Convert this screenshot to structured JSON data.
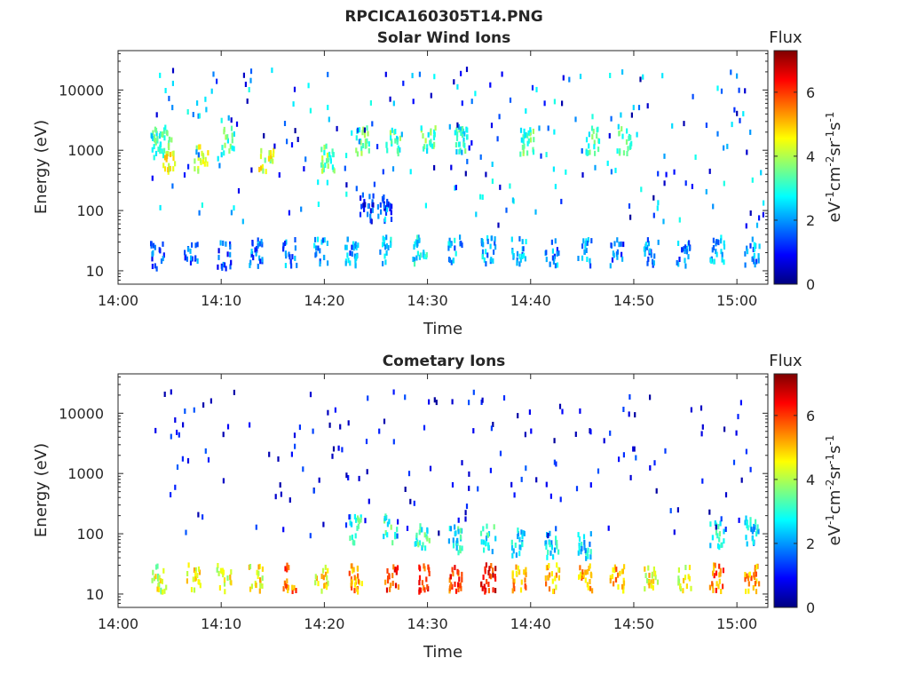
{
  "figure": {
    "suptitle": "RPCICA160305T14.PNG"
  },
  "colormap_stops": [
    "#00007f",
    "#0000ff",
    "#007fff",
    "#00ffff",
    "#7fff7f",
    "#ffff00",
    "#ff7f00",
    "#ff0000",
    "#7f0000"
  ],
  "chart_data": [
    {
      "type": "heatmap",
      "title": "Solar Wind Ions",
      "xlabel": "Time",
      "ylabel": "Energy (eV)",
      "x_ticks": [
        "14:00",
        "14:10",
        "14:20",
        "14:30",
        "14:40",
        "14:50",
        "15:00"
      ],
      "x_range_min": [
        0,
        63
      ],
      "y_ticks": [
        "10",
        "100",
        "1000",
        "10000"
      ],
      "y_scale": "log",
      "y_range": [
        6,
        45000
      ],
      "colorbar": {
        "label": "Flux",
        "units": "eV-1cm-2sr-1s-1",
        "ticks": [
          "0",
          "2",
          "4",
          "6"
        ],
        "range": [
          0,
          7.3
        ]
      },
      "clusters": [
        {
          "t": 3.7,
          "e": 1600,
          "v": 3.0
        },
        {
          "t": 4.4,
          "e": 1500,
          "v": 3.2
        },
        {
          "t": 5.0,
          "e": 800,
          "v": 4.3
        },
        {
          "t": 8.0,
          "e": 800,
          "v": 4.0
        },
        {
          "t": 10.6,
          "e": 1600,
          "v": 3.3
        },
        {
          "t": 14.3,
          "e": 800,
          "v": 4.2
        },
        {
          "t": 20.3,
          "e": 800,
          "v": 3.5
        },
        {
          "t": 23.6,
          "e": 1600,
          "v": 3.3
        },
        {
          "t": 26.6,
          "e": 1600,
          "v": 3.3
        },
        {
          "t": 30.0,
          "e": 1600,
          "v": 3.3
        },
        {
          "t": 33.1,
          "e": 1600,
          "v": 3.0
        },
        {
          "t": 39.6,
          "e": 1600,
          "v": 3.3
        },
        {
          "t": 46.0,
          "e": 1600,
          "v": 3.3
        },
        {
          "t": 49.0,
          "e": 1600,
          "v": 3.3
        },
        {
          "t": 24.0,
          "e": 120,
          "v": 1.2
        },
        {
          "t": 25.8,
          "e": 120,
          "v": 1.3
        },
        {
          "t": 3.8,
          "e": 20,
          "v": 1.5
        },
        {
          "t": 7.0,
          "e": 20,
          "v": 1.5
        },
        {
          "t": 10.2,
          "e": 20,
          "v": 1.5
        },
        {
          "t": 13.3,
          "e": 22,
          "v": 1.8
        },
        {
          "t": 16.6,
          "e": 22,
          "v": 1.9
        },
        {
          "t": 19.6,
          "e": 22,
          "v": 2.0
        },
        {
          "t": 22.6,
          "e": 22,
          "v": 2.0
        },
        {
          "t": 25.9,
          "e": 24,
          "v": 2.2
        },
        {
          "t": 29.2,
          "e": 24,
          "v": 2.6
        },
        {
          "t": 32.6,
          "e": 24,
          "v": 2.2
        },
        {
          "t": 35.8,
          "e": 24,
          "v": 2.2
        },
        {
          "t": 38.8,
          "e": 24,
          "v": 2.0
        },
        {
          "t": 42.0,
          "e": 22,
          "v": 1.9
        },
        {
          "t": 45.2,
          "e": 22,
          "v": 2.0
        },
        {
          "t": 48.3,
          "e": 22,
          "v": 1.6
        },
        {
          "t": 51.6,
          "e": 22,
          "v": 1.8
        },
        {
          "t": 54.8,
          "e": 22,
          "v": 1.8
        },
        {
          "t": 58.0,
          "e": 24,
          "v": 2.2
        },
        {
          "t": 61.4,
          "e": 22,
          "v": 2.0
        }
      ],
      "scatter": {
        "count": 230,
        "e_min": 60,
        "e_max": 25000,
        "v_min": 0.2,
        "v_max": 3.0
      }
    },
    {
      "type": "heatmap",
      "title": "Cometary Ions",
      "xlabel": "Time",
      "ylabel": "Energy (eV)",
      "x_ticks": [
        "14:00",
        "14:10",
        "14:20",
        "14:30",
        "14:40",
        "14:50",
        "15:00"
      ],
      "x_range_min": [
        0,
        63
      ],
      "y_ticks": [
        "10",
        "100",
        "1000",
        "10000"
      ],
      "y_scale": "log",
      "y_range": [
        6,
        45000
      ],
      "colorbar": {
        "label": "Flux",
        "units": "eV-1cm-2sr-1s-1",
        "ticks": [
          "0",
          "2",
          "4",
          "6"
        ],
        "range": [
          0,
          7.3
        ]
      },
      "clusters": [
        {
          "t": 3.9,
          "e": 20,
          "v": 4.2
        },
        {
          "t": 7.2,
          "e": 20,
          "v": 4.6
        },
        {
          "t": 10.2,
          "e": 20,
          "v": 4.4
        },
        {
          "t": 13.3,
          "e": 20,
          "v": 4.6
        },
        {
          "t": 16.6,
          "e": 20,
          "v": 5.6
        },
        {
          "t": 19.6,
          "e": 20,
          "v": 4.6
        },
        {
          "t": 23.0,
          "e": 20,
          "v": 5.2
        },
        {
          "t": 26.4,
          "e": 20,
          "v": 6.0
        },
        {
          "t": 29.4,
          "e": 20,
          "v": 6.0
        },
        {
          "t": 32.6,
          "e": 20,
          "v": 5.8
        },
        {
          "t": 35.8,
          "e": 20,
          "v": 6.2
        },
        {
          "t": 38.8,
          "e": 20,
          "v": 5.2
        },
        {
          "t": 42.0,
          "e": 20,
          "v": 5.0
        },
        {
          "t": 45.2,
          "e": 20,
          "v": 5.0
        },
        {
          "t": 48.3,
          "e": 20,
          "v": 5.2
        },
        {
          "t": 51.6,
          "e": 20,
          "v": 4.6
        },
        {
          "t": 54.8,
          "e": 20,
          "v": 4.4
        },
        {
          "t": 58.0,
          "e": 20,
          "v": 5.6
        },
        {
          "t": 61.4,
          "e": 20,
          "v": 5.2
        },
        {
          "t": 23.0,
          "e": 130,
          "v": 3.0
        },
        {
          "t": 26.3,
          "e": 130,
          "v": 3.2
        },
        {
          "t": 29.4,
          "e": 100,
          "v": 3.0
        },
        {
          "t": 32.6,
          "e": 90,
          "v": 2.8
        },
        {
          "t": 35.8,
          "e": 90,
          "v": 2.8
        },
        {
          "t": 38.8,
          "e": 80,
          "v": 2.6
        },
        {
          "t": 42.0,
          "e": 70,
          "v": 2.6
        },
        {
          "t": 45.2,
          "e": 70,
          "v": 2.4
        },
        {
          "t": 58.0,
          "e": 110,
          "v": 2.8
        },
        {
          "t": 61.4,
          "e": 120,
          "v": 2.4
        }
      ],
      "scatter": {
        "count": 170,
        "e_min": 100,
        "e_max": 25000,
        "v_min": 0.2,
        "v_max": 1.6
      }
    }
  ]
}
